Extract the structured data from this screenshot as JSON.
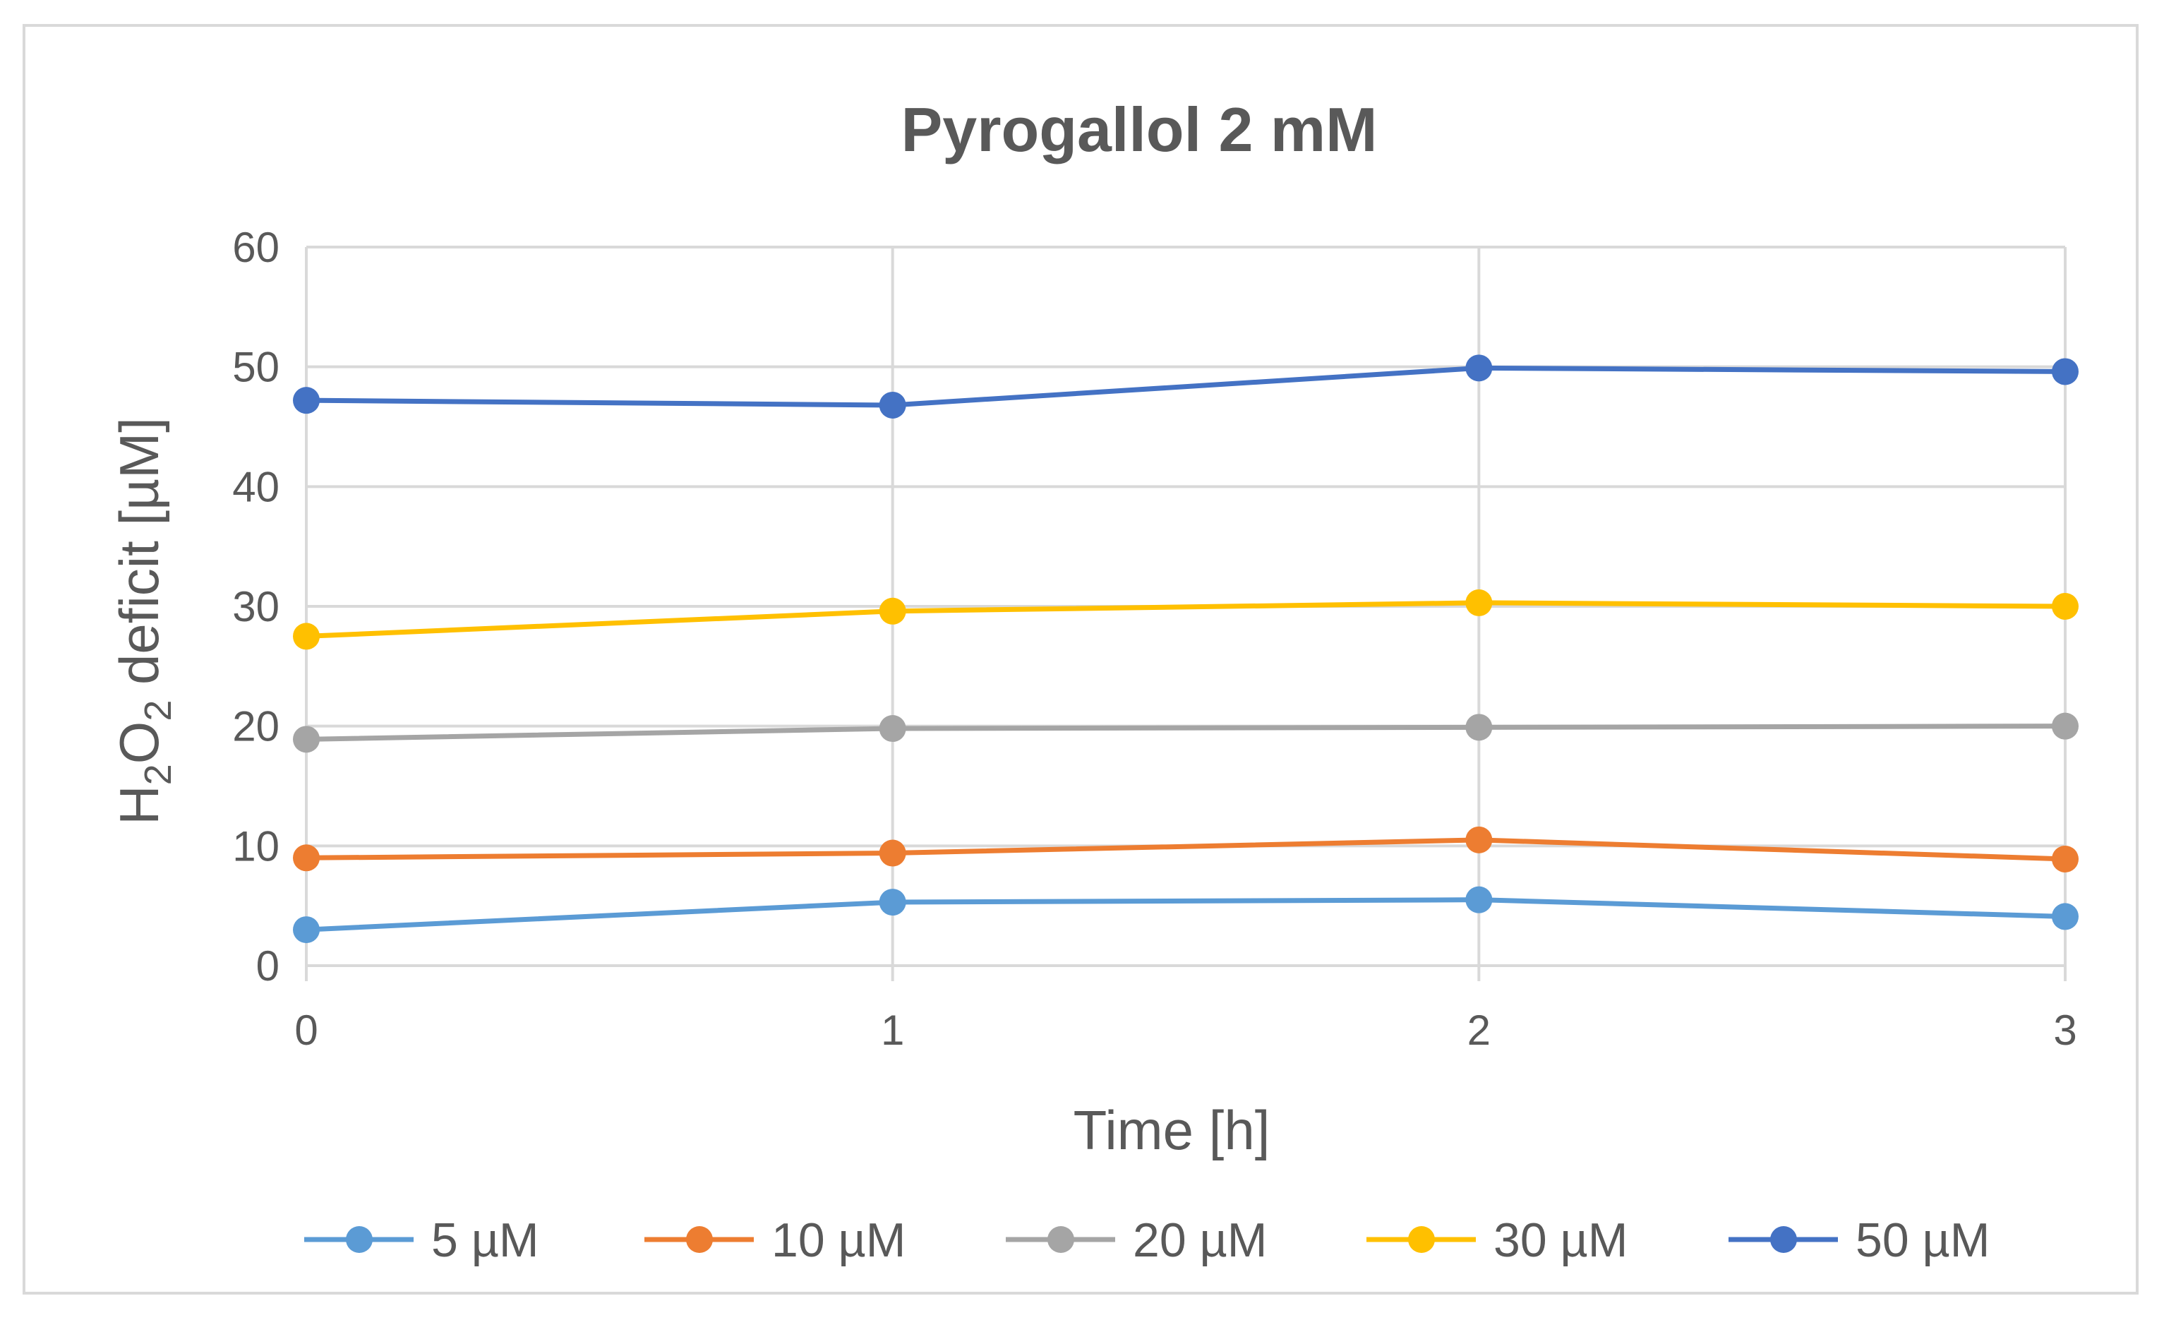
{
  "chart_data": {
    "type": "line",
    "title": "Pyrogallol 2 mM",
    "xlabel": "Time [h]",
    "ylabel": "H2O2 deficit [µM]",
    "ylabel_parts": {
      "a": "H",
      "sub1": "2",
      "b": "O",
      "sub2": "2",
      "c": " deficit [µM]"
    },
    "x": [
      0,
      1,
      2,
      3
    ],
    "x_ticks": [
      "0",
      "1",
      "2",
      "3"
    ],
    "ylim": [
      0,
      60
    ],
    "y_ticks": [
      "0",
      "10",
      "20",
      "30",
      "40",
      "50",
      "60"
    ],
    "grid": true,
    "legend_position": "bottom",
    "series": [
      {
        "name": "5 µM",
        "color": "#5B9BD5",
        "values": [
          3.0,
          5.3,
          5.5,
          4.1
        ]
      },
      {
        "name": "10 µM",
        "color": "#ED7D31",
        "values": [
          9.0,
          9.4,
          10.5,
          8.9
        ]
      },
      {
        "name": "20 µM",
        "color": "#A5A5A5",
        "values": [
          18.9,
          19.8,
          19.9,
          20.0
        ]
      },
      {
        "name": "30 µM",
        "color": "#FFC000",
        "values": [
          27.5,
          29.6,
          30.3,
          30.0
        ]
      },
      {
        "name": "50 µM",
        "color": "#4472C4",
        "values": [
          47.2,
          46.8,
          49.9,
          49.6
        ]
      }
    ]
  }
}
